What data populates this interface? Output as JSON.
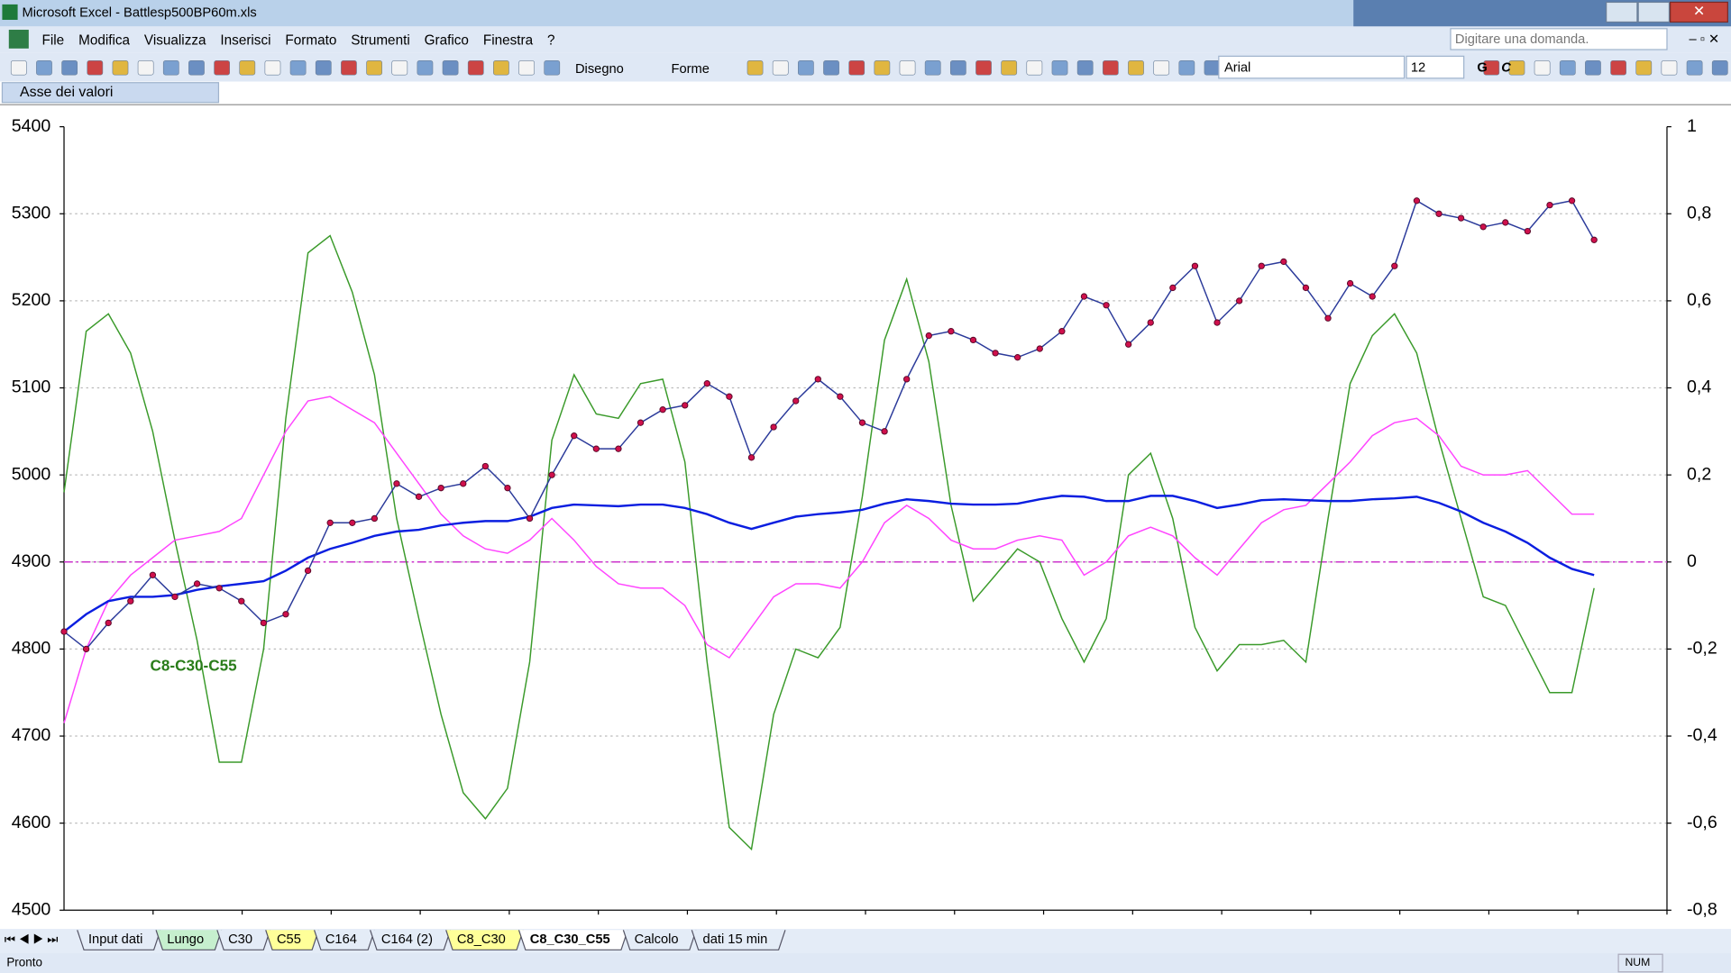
{
  "window": {
    "title": "Microsoft Excel - Battlesp500BP60m.xls"
  },
  "menu": [
    "File",
    "Modifica",
    "Visualizza",
    "Inserisci",
    "Formato",
    "Strumenti",
    "Grafico",
    "Finestra",
    "?"
  ],
  "help_box": "Digitare una domanda.",
  "toolbar": {
    "drawing": "Disegno",
    "shapes": "Forme",
    "font": "Arial",
    "font_size": "12",
    "bold": "G",
    "italic": "C"
  },
  "name_box": "Asse dei valori",
  "sheet_tabs": [
    "Input dati",
    "Lungo",
    "C30",
    "C55",
    "C164",
    "C164 (2)",
    "C8_C30",
    "C8_C30_C55",
    "Calcolo",
    "dati 15 min"
  ],
  "status": {
    "left": "Pronto",
    "num": "NUM"
  },
  "chart_data": {
    "type": "line",
    "annotation": "C8-C30-C55",
    "categories": [
      null,
      null,
      null,
      null,
      null,
      null,
      null,
      null,
      null,
      null,
      null,
      null,
      null,
      null,
      null,
      null,
      null,
      null,
      null,
      null,
      null,
      null,
      null,
      null,
      null,
      null,
      null,
      null,
      null,
      null,
      null,
      null,
      null,
      null,
      null,
      null,
      null,
      null,
      null,
      null,
      null,
      null,
      null,
      null,
      null,
      null,
      null,
      null,
      null,
      null,
      null,
      null,
      null,
      null,
      null,
      null,
      null,
      null,
      null,
      null,
      null,
      null,
      null,
      null,
      null,
      null,
      null,
      null,
      null,
      null
    ],
    "ylim": [
      4500,
      5400
    ],
    "yticks": [
      4500,
      4600,
      4700,
      4800,
      4900,
      5000,
      5100,
      5200,
      5300,
      5400
    ],
    "y2lim": [
      -0.8,
      1
    ],
    "y2ticks": [
      {
        "value": -0.8,
        "label": "-0,8"
      },
      {
        "value": -0.6,
        "label": "-0,6"
      },
      {
        "value": -0.4,
        "label": "-0,4"
      },
      {
        "value": -0.2,
        "label": "-0,2"
      },
      0,
      {
        "value": 0.2,
        "label": "0,2"
      },
      {
        "value": 0.4,
        "label": "0,4"
      },
      {
        "value": 0.6,
        "label": "0,6"
      },
      {
        "value": 0.8,
        "label": "0,8"
      },
      1
    ],
    "grid": true,
    "reference_line": {
      "value": 0,
      "axis": "y2",
      "color": "#cc33cc"
    },
    "series": [
      {
        "color": "#2b3a9a",
        "marker_color": "#d0104c",
        "values": [
          4820,
          4800,
          4830,
          4855,
          4885,
          4860,
          4875,
          4870,
          4855,
          4830,
          4840,
          4890,
          4945,
          4945,
          4950,
          4990,
          4975,
          4985,
          4990,
          5010,
          4985,
          4950,
          5000,
          5045,
          5030,
          5030,
          5060,
          5075,
          5080,
          5105,
          5090,
          5020,
          5055,
          5085,
          5110,
          5090,
          5060,
          5050,
          5110,
          5160,
          5165,
          5155,
          5140,
          5135,
          5145,
          5165,
          5205,
          5195,
          5150,
          5175,
          5215,
          5240,
          5175,
          5200,
          5240,
          5245,
          5215,
          5180,
          5220,
          5205,
          5240,
          5315,
          5300,
          5295,
          5285,
          5290,
          5280,
          5310,
          5315,
          5270
        ]
      },
      {
        "color": "#0a1ee0",
        "values": [
          4820,
          4840,
          4855,
          4860,
          4860,
          4862,
          4868,
          4872,
          4875,
          4878,
          4890,
          4905,
          4915,
          4922,
          4930,
          4935,
          4937,
          4942,
          4945,
          4947,
          4947,
          4952,
          4962,
          4966,
          4965,
          4964,
          4966,
          4966,
          4962,
          4955,
          4945,
          4938,
          4945,
          4952,
          4955,
          4957,
          4960,
          4967,
          4972,
          4970,
          4967,
          4966,
          4966,
          4967,
          4972,
          4976,
          4975,
          4970,
          4970,
          4976,
          4976,
          4970,
          4962,
          4966,
          4971,
          4972,
          4971,
          4970,
          4970,
          4972,
          4973,
          4975,
          4968,
          4958,
          4945,
          4935,
          4922,
          4905,
          4892,
          4885
        ]
      },
      {
        "color": "#ff44ff",
        "axis": "y2",
        "values": [
          -0.37,
          -0.2,
          -0.09,
          -0.03,
          0.01,
          0.05,
          0.06,
          0.07,
          0.1,
          0.2,
          0.3,
          0.37,
          0.38,
          0.35,
          0.32,
          0.25,
          0.18,
          0.11,
          0.06,
          0.03,
          0.02,
          0.05,
          0.1,
          0.05,
          -0.01,
          -0.05,
          -0.06,
          -0.06,
          -0.1,
          -0.19,
          -0.22,
          -0.15,
          -0.08,
          -0.05,
          -0.05,
          -0.06,
          0,
          0.09,
          0.13,
          0.1,
          0.05,
          0.03,
          0.03,
          0.05,
          0.06,
          0.05,
          -0.03,
          0,
          0.06,
          0.08,
          0.06,
          0.01,
          -0.03,
          0.03,
          0.09,
          0.12,
          0.13,
          0.18,
          0.23,
          0.29,
          0.32,
          0.33,
          0.29,
          0.22,
          0.2,
          0.2,
          0.21,
          0.16,
          0.11,
          0.11
        ]
      },
      {
        "color": "#3a9a2a",
        "axis": "y2",
        "values": [
          0.16,
          0.53,
          0.57,
          0.48,
          0.3,
          0.05,
          -0.18,
          -0.46,
          -0.46,
          -0.2,
          0.33,
          0.71,
          0.75,
          0.62,
          0.43,
          0.1,
          -0.13,
          -0.35,
          -0.53,
          -0.59,
          -0.52,
          -0.23,
          0.28,
          0.43,
          0.34,
          0.33,
          0.41,
          0.42,
          0.23,
          -0.23,
          -0.61,
          -0.66,
          -0.35,
          -0.2,
          -0.22,
          -0.15,
          0.15,
          0.51,
          0.65,
          0.46,
          0.13,
          -0.09,
          -0.03,
          0.03,
          0,
          -0.13,
          -0.23,
          -0.13,
          0.2,
          0.25,
          0.1,
          -0.15,
          -0.25,
          -0.19,
          -0.19,
          -0.18,
          -0.23,
          0.1,
          0.41,
          0.52,
          0.57,
          0.48,
          0.28,
          0.1,
          -0.08,
          -0.1,
          -0.2,
          -0.3,
          -0.3,
          -0.06
        ]
      }
    ]
  }
}
